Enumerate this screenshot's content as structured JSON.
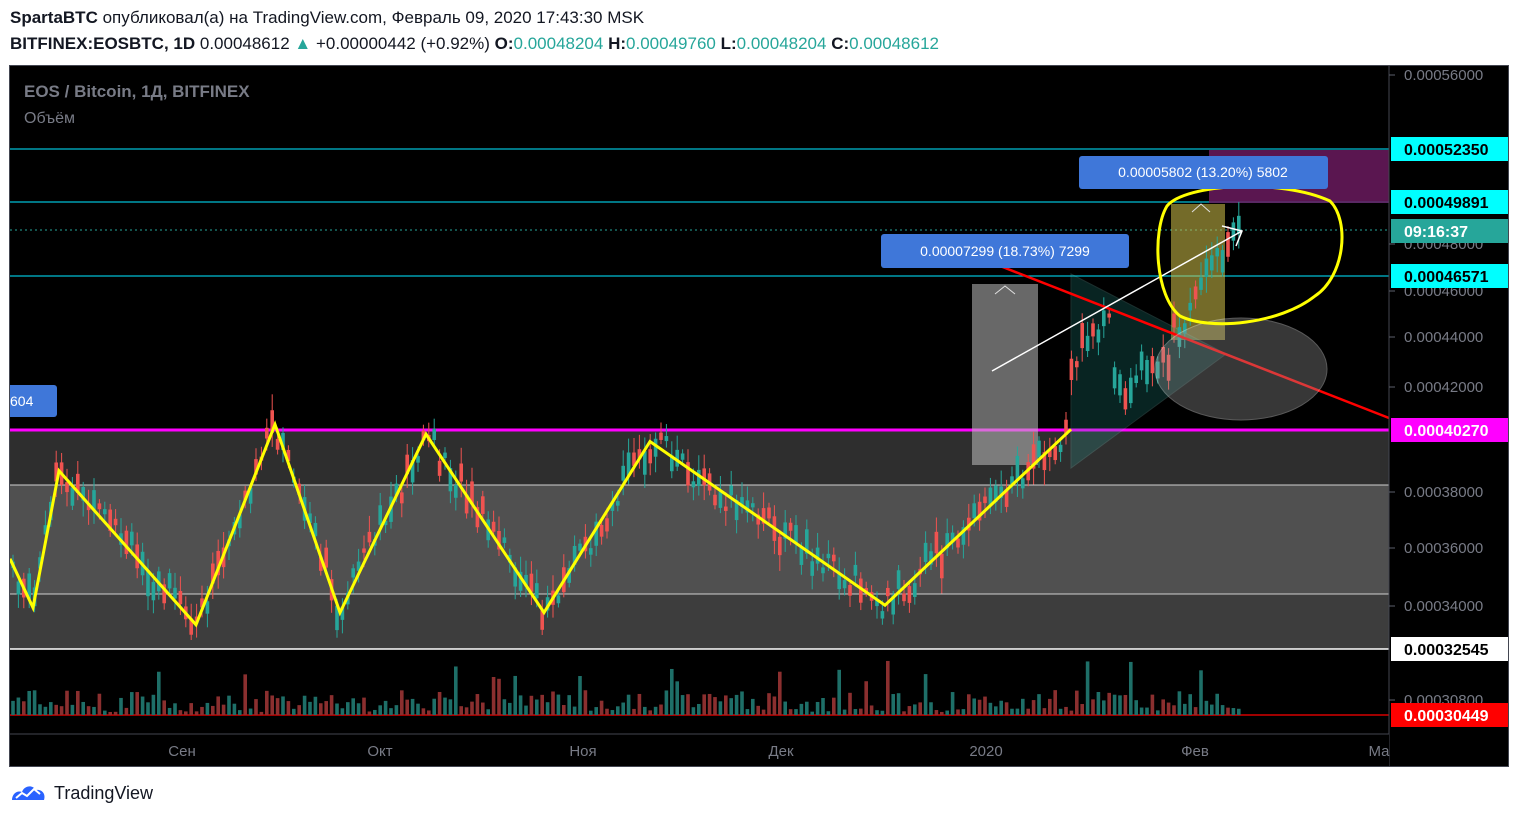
{
  "header": {
    "author": "SpartaBTC",
    "published_text": "опубликовал(а) на TradingView.com, Февраль 09, 2020 17:43:30 MSK",
    "symbol": "BITFINEX:EOSBTC, 1D",
    "last_price": "0.00048612",
    "change": "+0.00000442 (+0.92%)",
    "open_label": "O:",
    "open": "0.00048204",
    "high_label": "H:",
    "high": "0.00049760",
    "low_label": "L:",
    "low": "0.00048204",
    "close_label": "C:",
    "close": "0.00048612"
  },
  "legend": {
    "title": "EOS / Bitcoin, 1Д, BITFINEX",
    "volume": "Объём"
  },
  "price_axis": {
    "ticks": [
      "0.00056000",
      "0.00048000",
      "0.00046000",
      "0.00044000",
      "0.00042000",
      "0.00038000",
      "0.00036000",
      "0.00034000",
      "0.00030800"
    ],
    "badges": [
      {
        "label": "0.00052350",
        "style": "cyan"
      },
      {
        "label": "0.00049891",
        "style": "cyan"
      },
      {
        "label": "09:16:37",
        "style": "teal"
      },
      {
        "label": "0.00046571",
        "style": "cyan"
      },
      {
        "label": "0.00040270",
        "style": "magenta"
      },
      {
        "label": "0.00032545",
        "style": "white"
      },
      {
        "label": "0.00030449",
        "style": "red"
      }
    ]
  },
  "time_axis": [
    "Сен",
    "Окт",
    "Ноя",
    "Дек",
    "2020",
    "Фев",
    "Ма"
  ],
  "annotations": {
    "measure1": "0.00007299 (18.73%) 7299",
    "measure2": "0.00005802 (13.20%) 5802",
    "left_label": "604"
  },
  "footer": {
    "brand": "TradingView"
  },
  "colors": {
    "background": "#000000",
    "up": "#26a69a",
    "down": "#ef5350",
    "zigzag": "#ffff00",
    "magenta": "#ff00ff",
    "cyan": "#00bcd4",
    "label_blue": "#3f77d9",
    "trendline": "#ff0000"
  },
  "chart_data": {
    "type": "candlestick",
    "title": "EOS / Bitcoin, 1Д, BITFINEX",
    "y_axis_ticks": [
      0.00056,
      0.00048,
      0.00046,
      0.00044,
      0.00042,
      0.00038,
      0.00036,
      0.00034,
      0.000308
    ],
    "horizontal_levels": [
      0.0005235,
      0.00049891,
      0.00046571,
      0.0004027,
      0.00032545,
      0.00030449
    ],
    "last_price": 0.00048612,
    "zigzag_pivots": [
      {
        "month": "Aug",
        "price": 0.00035
      },
      {
        "month": "Aug",
        "price": 0.00033
      },
      {
        "month": "Aug",
        "price": 0.000386
      },
      {
        "month": "Sep",
        "price": 0.000323
      },
      {
        "month": "Sep",
        "price": 0.000405
      },
      {
        "month": "Sep",
        "price": 0.000328
      },
      {
        "month": "Oct",
        "price": 0.000401
      },
      {
        "month": "Oct",
        "price": 0.000328
      },
      {
        "month": "Nov",
        "price": 0.000398
      },
      {
        "month": "Dec",
        "price": 0.000331
      },
      {
        "month": "Jan",
        "price": 0.000403
      }
    ],
    "measurements": [
      {
        "label": "0.00007299 (18.73%) 7299",
        "change": 7.299e-05,
        "percent": 18.73
      },
      {
        "label": "0.00005802 (13.20%) 5802",
        "change": 5.802e-05,
        "percent": 13.2
      }
    ]
  }
}
